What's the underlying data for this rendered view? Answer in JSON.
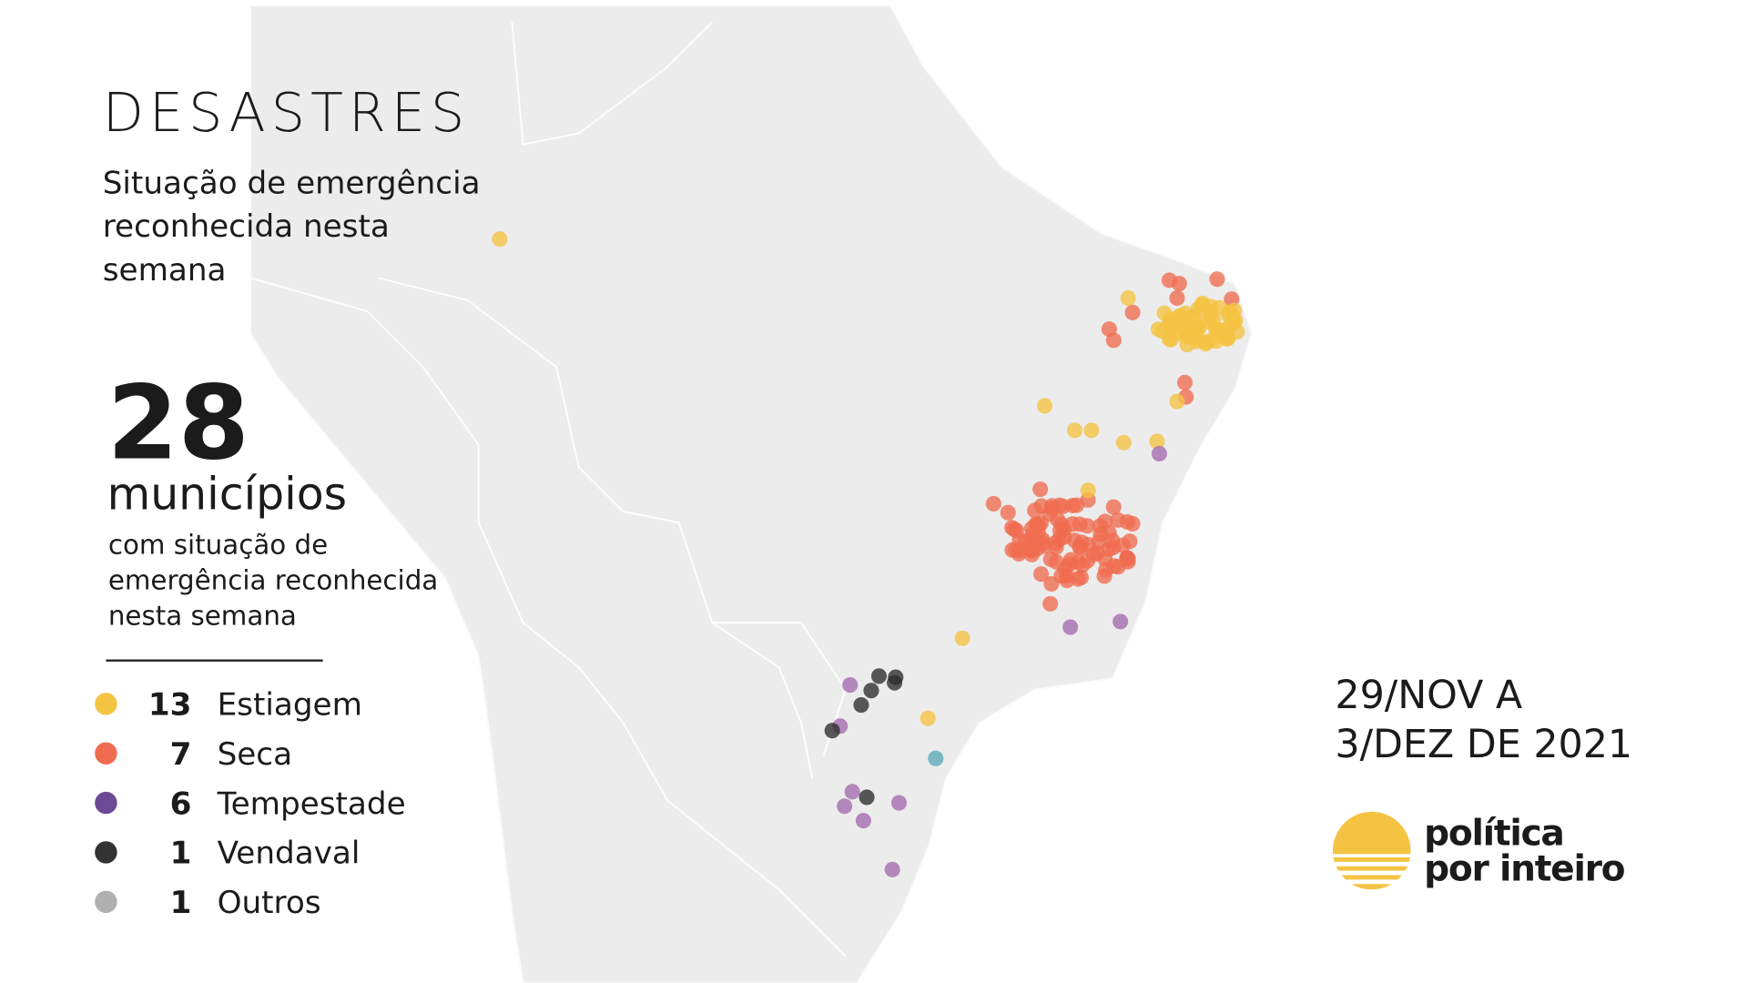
{
  "header": {
    "title": "DESASTRES",
    "subtitle_lines": [
      "Situação de emergência",
      "reconhecida nesta",
      "semana"
    ]
  },
  "summary": {
    "count": "28",
    "label": "municípios",
    "description_lines": [
      "com situação de",
      "emergência reconhecida",
      "nesta semana"
    ]
  },
  "legend": [
    {
      "count": "13",
      "label": "Estiagem",
      "color": "#f5c342"
    },
    {
      "count": "7",
      "label": "Seca",
      "color": "#ef6b50"
    },
    {
      "count": "6",
      "label": "Tempestade",
      "color": "#6b4a96"
    },
    {
      "count": "1",
      "label": "Vendaval",
      "color": "#333333"
    },
    {
      "count": "1",
      "label": "Outros",
      "color": "#b0b0b0"
    }
  ],
  "period_lines": [
    "29/NOV A",
    "3/DEZ DE 2021"
  ],
  "logo": {
    "line1": "política",
    "line2": "por inteiro"
  }
}
